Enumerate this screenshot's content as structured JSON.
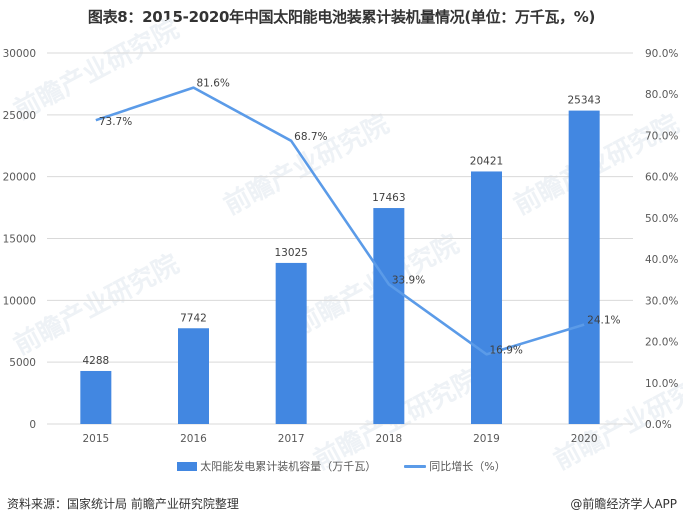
{
  "title": "图表8：2015-2020年中国太阳能电池装累计装机量情况(单位：万千瓦，%)",
  "colors": {
    "bar": "#4287e1",
    "line": "#5b9be8",
    "grid": "#d9d9d9",
    "axis_text": "#595959"
  },
  "legend": {
    "bar_label": "太阳能发电累计装机容量（万千瓦）",
    "line_label": "同比增长（%）"
  },
  "footer": {
    "source": "资料来源：国家统计局 前瞻产业研究院整理",
    "brand": "@前瞻经济学人APP"
  },
  "watermark": "前瞻产业研究院",
  "chart_data": {
    "type": "bar+line",
    "title": "图表8：2015-2020年中国太阳能电池装累计装机量情况(单位：万千瓦，%)",
    "categories": [
      "2015",
      "2016",
      "2017",
      "2018",
      "2019",
      "2020"
    ],
    "series": [
      {
        "name": "太阳能发电累计装机容量（万千瓦）",
        "type": "bar",
        "axis": "left",
        "values": [
          4288,
          7742,
          13025,
          17463,
          20421,
          25343
        ],
        "labels": [
          "4288",
          "7742",
          "13025",
          "17463",
          "20421",
          "25343"
        ]
      },
      {
        "name": "同比增长（%）",
        "type": "line",
        "axis": "right",
        "values": [
          73.7,
          81.6,
          68.7,
          33.9,
          16.9,
          24.1
        ],
        "labels": [
          "73.7%",
          "81.6%",
          "68.7%",
          "33.9%",
          "16.9%",
          "24.1%"
        ]
      }
    ],
    "left_axis": {
      "ylim": [
        0,
        30000
      ],
      "ticks": [
        "0",
        "5000",
        "10000",
        "15000",
        "20000",
        "25000",
        "30000"
      ]
    },
    "right_axis": {
      "ylim": [
        0,
        90
      ],
      "ticks": [
        "0.0%",
        "10.0%",
        "20.0%",
        "30.0%",
        "40.0%",
        "50.0%",
        "60.0%",
        "70.0%",
        "80.0%",
        "90.0%"
      ]
    },
    "xlabel": "",
    "ylabel": "",
    "grid": true,
    "legend_position": "bottom"
  }
}
